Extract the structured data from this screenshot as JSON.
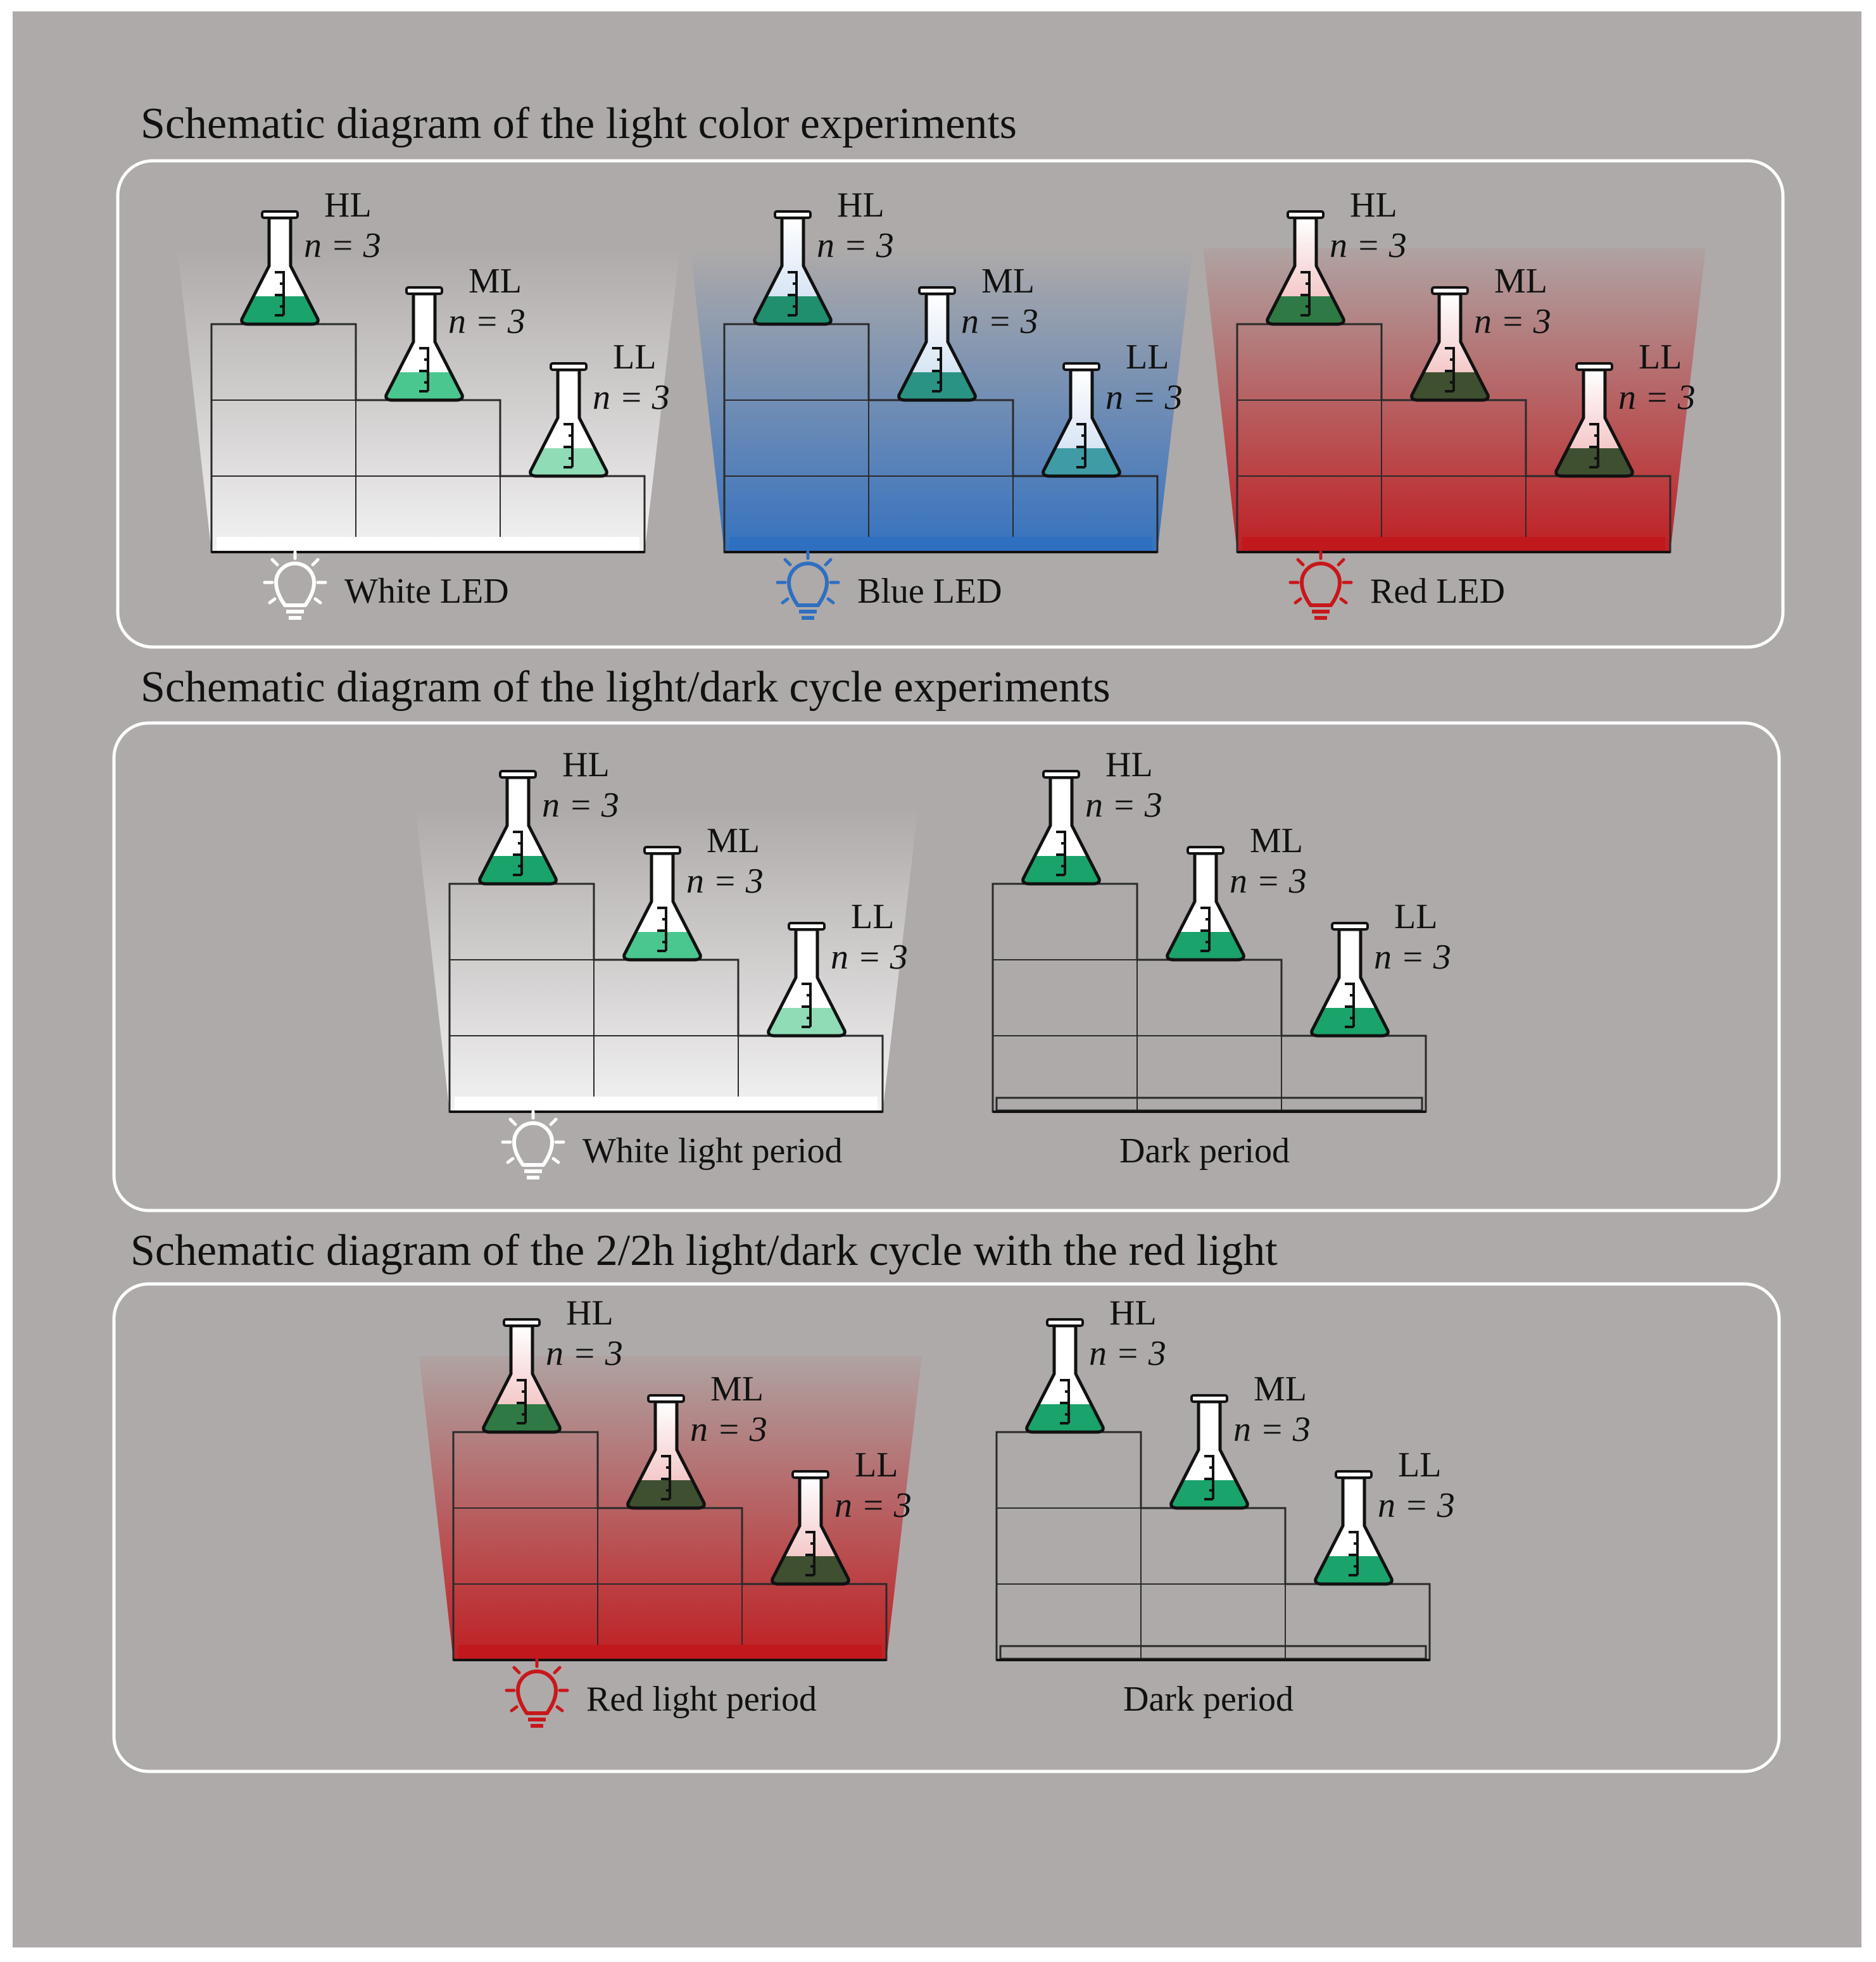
{
  "colors": {
    "page_bg": "#ffffff",
    "panel_bg": "#aeaaa9",
    "frame_stroke": "#ffffff",
    "stair_line": "#2a2a2a",
    "culture_green": "#1aa36a",
    "culture_dark": "#3e5030",
    "white_light": "#ffffff",
    "blue_light": "#2f6fc0",
    "red_light": "#c0181c",
    "icon_white": "#ffffff",
    "icon_blue": "#2f6fc0",
    "icon_red": "#c8171b"
  },
  "flask_labels": {
    "high": "HL",
    "medium": "ML",
    "low": "LL",
    "replicates": "n = 3"
  },
  "sections": [
    {
      "title": "Schematic diagram of the light color experiments",
      "setups": [
        {
          "label": "White LED",
          "light": "white",
          "icon": "lightbulb-icon",
          "icon_color": "#ffffff"
        },
        {
          "label": "Blue LED",
          "light": "blue",
          "icon": "lightbulb-icon",
          "icon_color": "#2f6fc0"
        },
        {
          "label": "Red LED",
          "light": "red",
          "icon": "lightbulb-icon",
          "icon_color": "#c8171b"
        }
      ]
    },
    {
      "title": "Schematic diagram of the light/dark cycle experiments",
      "setups": [
        {
          "label": "White light period",
          "light": "white",
          "icon": "lightbulb-icon",
          "icon_color": "#ffffff"
        },
        {
          "label": "Dark period",
          "light": "dark"
        }
      ]
    },
    {
      "title": "Schematic diagram of the 2/2h light/dark cycle with the red light",
      "setups": [
        {
          "label": "Red light period",
          "light": "red",
          "icon": "lightbulb-icon",
          "icon_color": "#c8171b"
        },
        {
          "label": "Dark period",
          "light": "dark"
        }
      ]
    }
  ]
}
